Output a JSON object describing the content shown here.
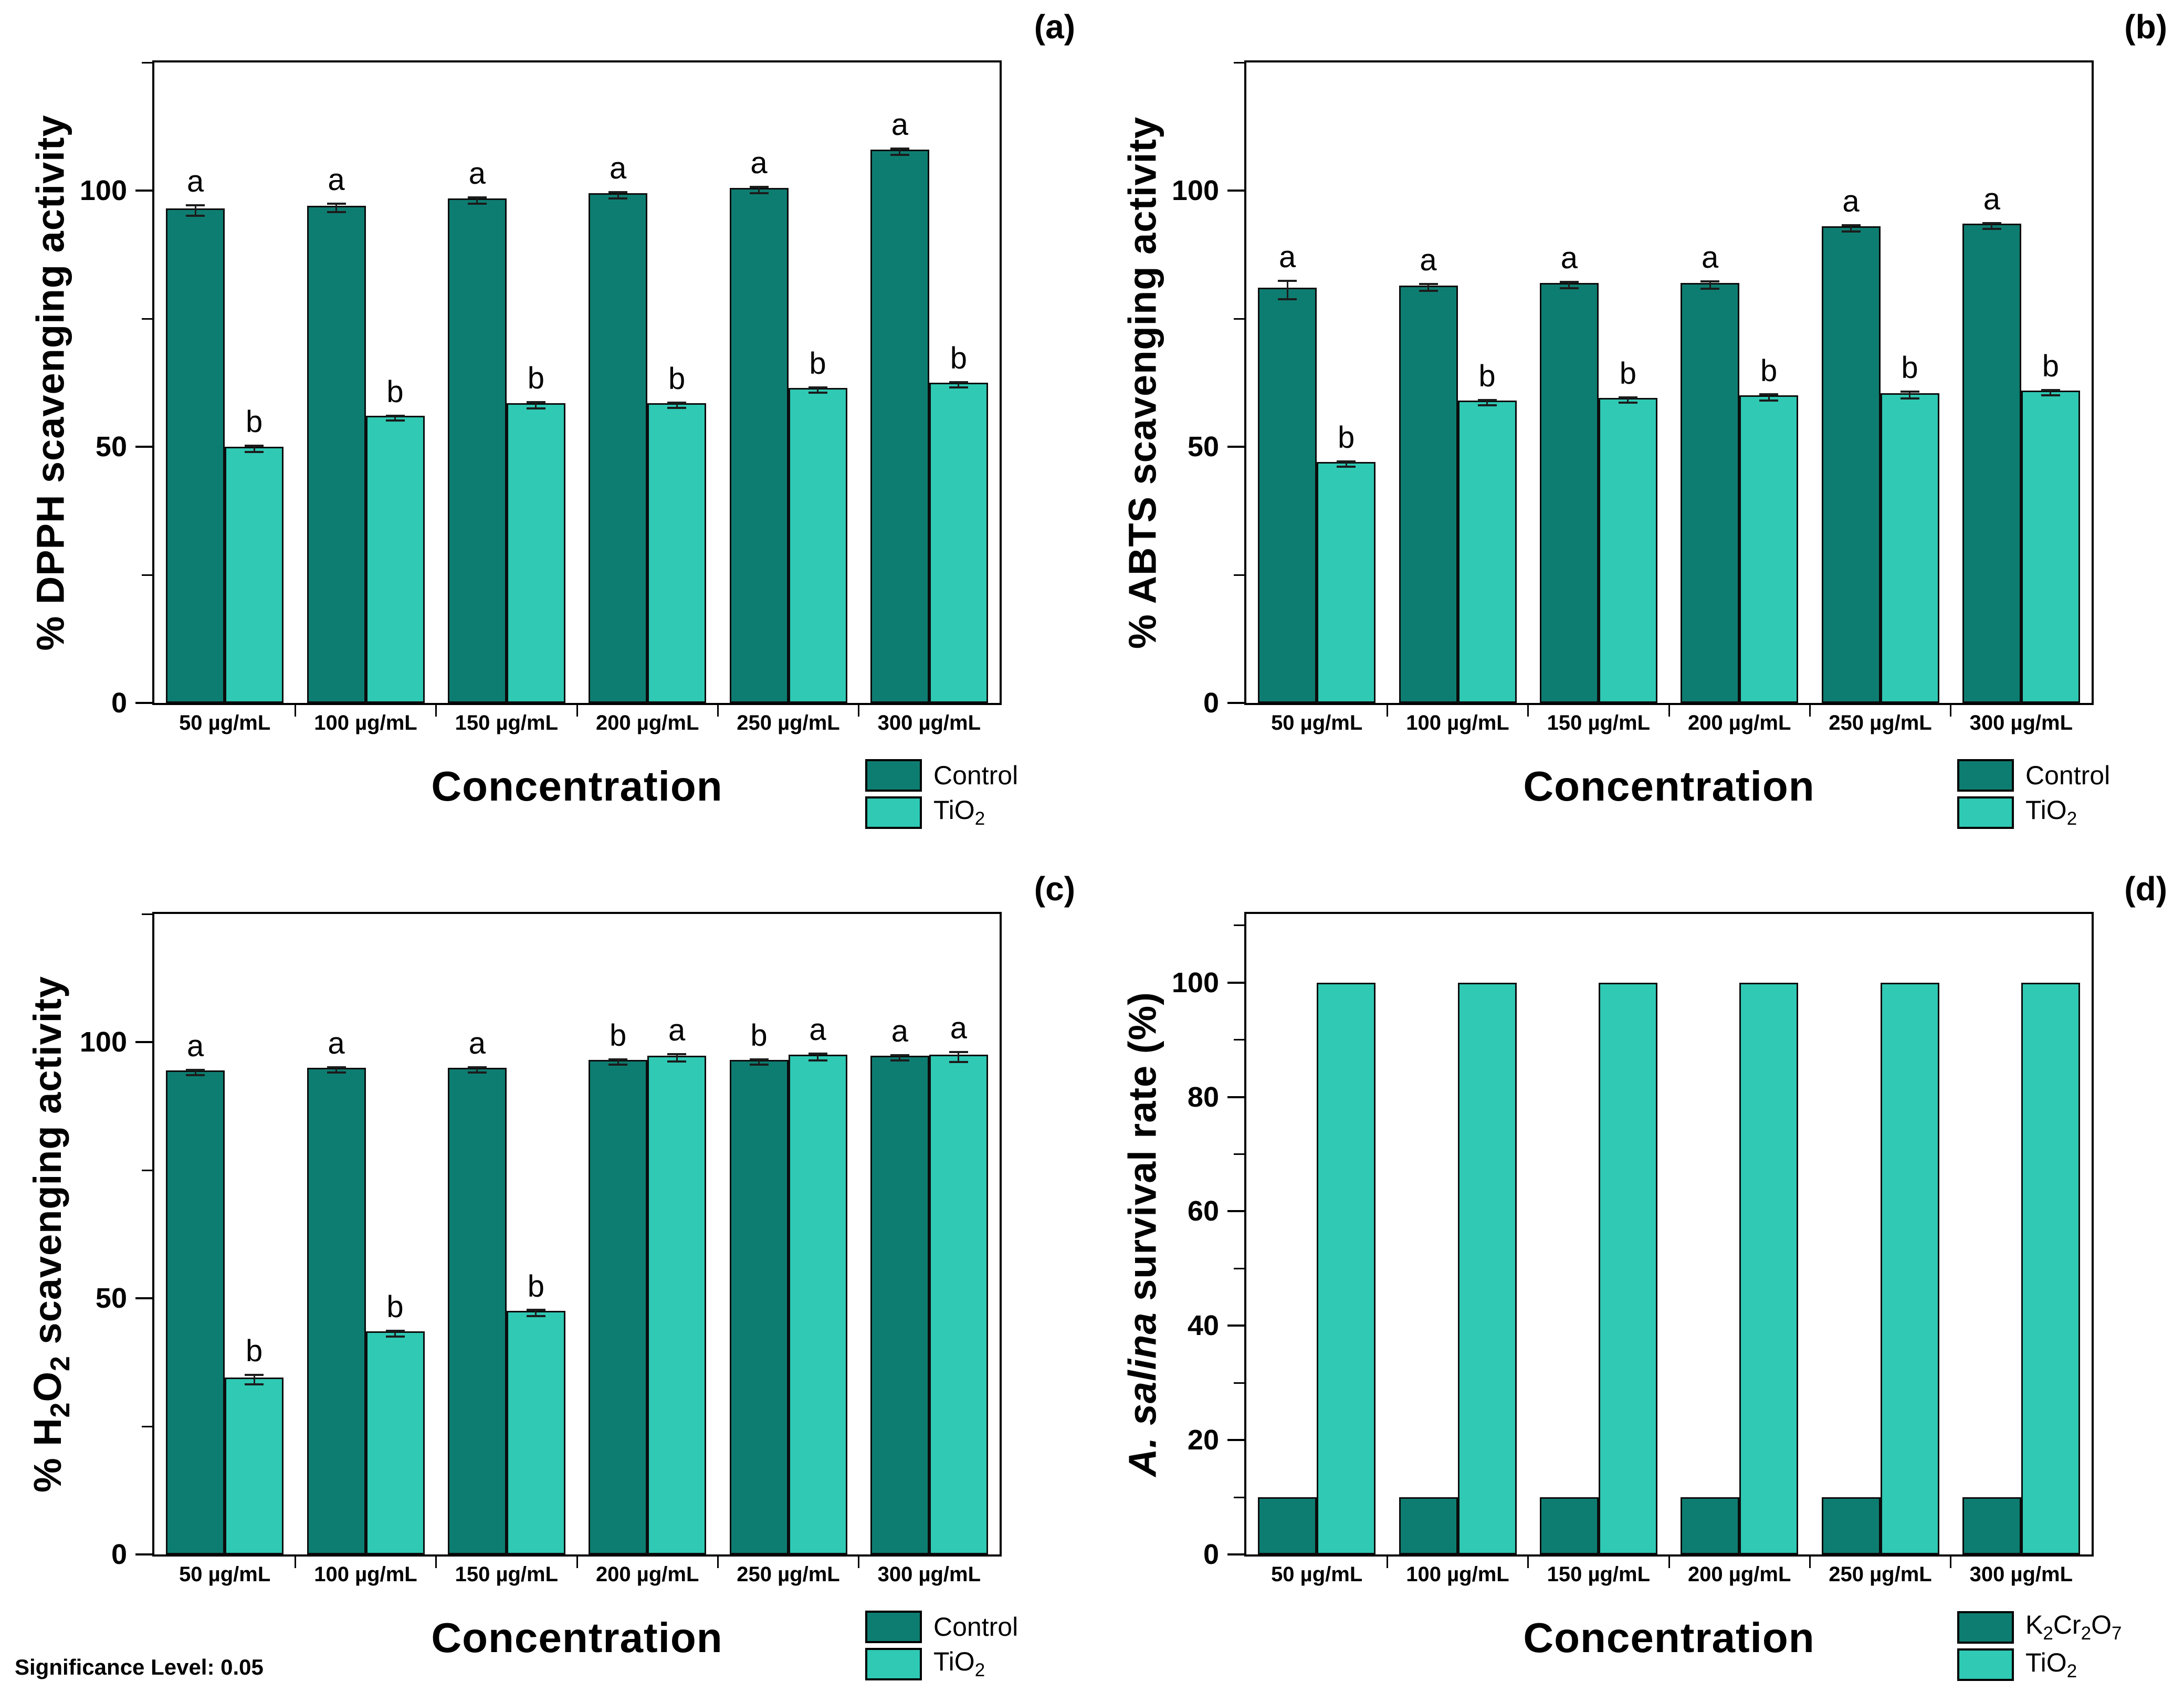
{
  "figure": {
    "significance_note": "Significance Level: 0.05"
  },
  "colors": {
    "dark_teal": "#0E7D71",
    "light_teal": "#2FC9B4",
    "bar_outline": "#0C0C0C"
  },
  "chart_data": [
    {
      "id": "a",
      "tag": "(a)",
      "type": "bar",
      "xlabel": "Concentration",
      "ylabel": "% DPPH scavenging activity",
      "categories": [
        "50 µg/mL",
        "100 µg/mL",
        "150 µg/mL",
        "200 µg/mL",
        "250 µg/mL",
        "300 µg/mL"
      ],
      "ylim": [
        0,
        125
      ],
      "yticks": [
        0,
        50,
        100
      ],
      "yticks_minor": [
        25,
        75,
        125
      ],
      "grid": false,
      "legend_position": "bottom-right",
      "series": [
        {
          "name": "Control",
          "color": "#0E7D71",
          "values": [
            96.5,
            97,
            98.5,
            99.5,
            100.5,
            108
          ],
          "errors": [
            0.8,
            0.6,
            0.4,
            0.4,
            0.4,
            0.4
          ],
          "sig_letters": [
            "a",
            "a",
            "a",
            "a",
            "a",
            "a"
          ]
        },
        {
          "name": "TiO~2~",
          "color": "#2FC9B4",
          "values": [
            50,
            56,
            58.5,
            58.5,
            61.5,
            62.5
          ],
          "errors": [
            0.4,
            0.3,
            0.4,
            0.3,
            0.3,
            0.3
          ],
          "sig_letters": [
            "b",
            "b",
            "b",
            "b",
            "b",
            "b"
          ]
        }
      ]
    },
    {
      "id": "b",
      "tag": "(b)",
      "type": "bar",
      "xlabel": "Concentration",
      "ylabel": "% ABTS scavenging activity",
      "categories": [
        "50 µg/mL",
        "100 µg/mL",
        "150 µg/mL",
        "200 µg/mL",
        "250 µg/mL",
        "300 µg/mL"
      ],
      "ylim": [
        0,
        125
      ],
      "yticks": [
        0,
        50,
        100
      ],
      "yticks_minor": [
        25,
        75,
        125
      ],
      "grid": false,
      "legend_position": "bottom-right",
      "series": [
        {
          "name": "Control",
          "color": "#0E7D71",
          "values": [
            81,
            81.5,
            82,
            82,
            93,
            93.5
          ],
          "errors": [
            1.6,
            0.5,
            0.4,
            0.5,
            0.4,
            0.4
          ],
          "sig_letters": [
            "a",
            "a",
            "a",
            "a",
            "a",
            "a"
          ]
        },
        {
          "name": "TiO~2~",
          "color": "#2FC9B4",
          "values": [
            47,
            59,
            59.5,
            60,
            60.5,
            61
          ],
          "errors": [
            0.3,
            0.3,
            0.3,
            0.4,
            0.5,
            0.3
          ],
          "sig_letters": [
            "b",
            "b",
            "b",
            "b",
            "b",
            "b"
          ]
        }
      ]
    },
    {
      "id": "c",
      "tag": "(c)",
      "type": "bar",
      "xlabel": "Concentration",
      "ylabel": "% H~2~O~2~ scavenging activity",
      "categories": [
        "50 µg/mL",
        "100 µg/mL",
        "150 µg/mL",
        "200 µg/mL",
        "250 µg/mL",
        "300 µg/mL"
      ],
      "ylim": [
        0,
        125
      ],
      "yticks": [
        0,
        50,
        100
      ],
      "yticks_minor": [
        25,
        75,
        125
      ],
      "grid": false,
      "legend_position": "bottom-right",
      "series": [
        {
          "name": "Control",
          "color": "#0E7D71",
          "values": [
            94.5,
            95,
            95,
            96.5,
            96.5,
            97.3
          ],
          "errors": [
            0.3,
            0.3,
            0.3,
            0.3,
            0.3,
            0.3
          ],
          "sig_letters": [
            "a",
            "a",
            "a",
            "b",
            "b",
            "a"
          ]
        },
        {
          "name": "TiO~2~",
          "color": "#2FC9B4",
          "values": [
            34.5,
            43.5,
            47.5,
            97.3,
            97.5,
            97.5
          ],
          "errors": [
            0.7,
            0.4,
            0.4,
            0.5,
            0.5,
            0.8
          ],
          "sig_letters": [
            "b",
            "b",
            "b",
            "a",
            "a",
            "a"
          ]
        }
      ]
    },
    {
      "id": "d",
      "tag": "(d)",
      "type": "bar",
      "xlabel": "Concentration",
      "ylabel": "*A. salina* survival rate (%)",
      "categories": [
        "50 µg/mL",
        "100 µg/mL",
        "150 µg/mL",
        "200 µg/mL",
        "250 µg/mL",
        "300 µg/mL"
      ],
      "ylim": [
        0,
        112
      ],
      "yticks": [
        0,
        20,
        40,
        60,
        80,
        100
      ],
      "yticks_minor": [
        10,
        30,
        50,
        70,
        90,
        110
      ],
      "grid": false,
      "legend_position": "bottom-right",
      "series": [
        {
          "name": "K~2~Cr~2~O~7~",
          "color": "#0E7D71",
          "values": [
            10,
            10,
            10,
            10,
            10,
            10
          ],
          "errors": [
            0,
            0,
            0,
            0,
            0,
            0
          ],
          "sig_letters": null
        },
        {
          "name": "TiO~2~",
          "color": "#2FC9B4",
          "values": [
            100,
            100,
            100,
            100,
            100,
            100
          ],
          "errors": [
            0,
            0,
            0,
            0,
            0,
            0
          ],
          "sig_letters": null
        }
      ]
    }
  ]
}
